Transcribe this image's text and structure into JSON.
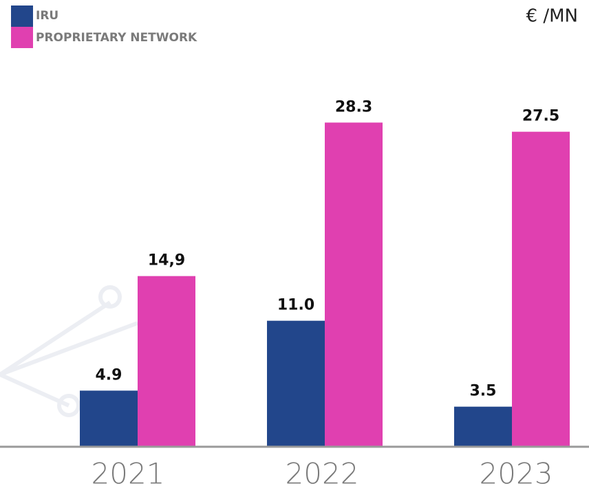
{
  "chart_data": {
    "type": "bar",
    "unit_label": "€ /MN",
    "categories": [
      "2021",
      "2022",
      "2023"
    ],
    "series": [
      {
        "name": "IRU",
        "color": "#22468b",
        "values": [
          4.9,
          11.0,
          3.5
        ],
        "value_labels": [
          "4.9",
          "11.0",
          "3.5"
        ]
      },
      {
        "name": "PROPRIETARY NETWORK",
        "color": "#e040b0",
        "values": [
          14.9,
          28.3,
          27.5
        ],
        "value_labels": [
          "14,9",
          "28.3",
          "27.5"
        ]
      }
    ],
    "ylim": [
      0,
      30
    ],
    "legend": "top-left"
  }
}
